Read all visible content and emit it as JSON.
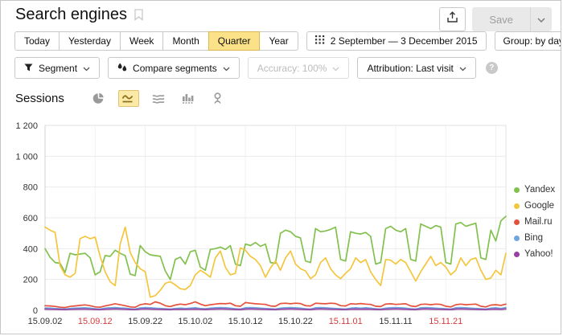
{
  "header": {
    "title": "Search engines",
    "save_label": "Save"
  },
  "toolbar": {
    "tabs": [
      {
        "label": "Today",
        "selected": false
      },
      {
        "label": "Yesterday",
        "selected": false
      },
      {
        "label": "Week",
        "selected": false
      },
      {
        "label": "Month",
        "selected": false
      },
      {
        "label": "Quarter",
        "selected": true
      },
      {
        "label": "Year",
        "selected": false
      }
    ],
    "date_range": "2 September — 3 December 2015",
    "group_label": "Group: by day",
    "segment_label": "Segment",
    "compare_label": "Compare segments",
    "accuracy_label": "Accuracy: 100%",
    "attribution_label": "Attribution: Last visit",
    "help_label": "?"
  },
  "metric": {
    "label": "Sessions"
  },
  "icons": {
    "chart_types": [
      "pie-chart",
      "line-chart",
      "stacked-area",
      "bar-chart",
      "map-pin"
    ],
    "selected_chart_type": "line-chart"
  },
  "colors": {
    "selected_tab_bg": "#fbe188",
    "weekend_tick": "#d43d3d"
  },
  "chart_data": {
    "type": "line",
    "ylabel": "Sessions",
    "ylim": [
      0,
      1200
    ],
    "grid": true,
    "legend_position": "right",
    "y_ticks": [
      {
        "label": "0",
        "value": 0
      },
      {
        "label": "200",
        "value": 200
      },
      {
        "label": "400",
        "value": 400
      },
      {
        "label": "600",
        "value": 600
      },
      {
        "label": "800",
        "value": 800
      },
      {
        "label": "1 000",
        "value": 1000
      },
      {
        "label": "1 200",
        "value": 1200
      }
    ],
    "x_start": "2015-09-02",
    "x_end": "2015-12-03",
    "days": 93,
    "x_ticks": [
      {
        "label": "15.09.02",
        "pos": 0,
        "weekend": false
      },
      {
        "label": "15.09.12",
        "pos": 10,
        "weekend": true
      },
      {
        "label": "15.09.22",
        "pos": 20,
        "weekend": false
      },
      {
        "label": "15.10.02",
        "pos": 30,
        "weekend": false
      },
      {
        "label": "15.10.12",
        "pos": 40,
        "weekend": false
      },
      {
        "label": "15.10.22",
        "pos": 50,
        "weekend": false
      },
      {
        "label": "15.11.01",
        "pos": 60,
        "weekend": true
      },
      {
        "label": "15.11.11",
        "pos": 70,
        "weekend": false
      },
      {
        "label": "15.11.21",
        "pos": 80,
        "weekend": true
      }
    ],
    "series": [
      {
        "name": "Yandex",
        "color": "#82c14e",
        "values": [
          400,
          345,
          310,
          305,
          245,
          370,
          360,
          365,
          370,
          340,
          230,
          250,
          355,
          350,
          390,
          370,
          355,
          235,
          225,
          420,
          380,
          360,
          355,
          350,
          255,
          200,
          330,
          345,
          300,
          380,
          390,
          280,
          260,
          395,
          400,
          410,
          395,
          420,
          300,
          290,
          430,
          420,
          440,
          415,
          430,
          310,
          305,
          500,
          520,
          510,
          480,
          470,
          320,
          310,
          530,
          510,
          515,
          525,
          540,
          330,
          320,
          510,
          500,
          495,
          505,
          480,
          300,
          310,
          530,
          545,
          520,
          510,
          530,
          330,
          320,
          560,
          545,
          530,
          550,
          540,
          310,
          300,
          560,
          570,
          545,
          555,
          565,
          340,
          330,
          520,
          450,
          580,
          610
        ]
      },
      {
        "name": "Google",
        "color": "#f4c63d",
        "values": [
          540,
          520,
          505,
          290,
          230,
          215,
          240,
          465,
          480,
          465,
          475,
          350,
          250,
          185,
          160,
          430,
          540,
          375,
          310,
          270,
          250,
          85,
          95,
          130,
          175,
          185,
          165,
          140,
          135,
          160,
          230,
          260,
          240,
          215,
          340,
          385,
          280,
          230,
          240,
          405,
          390,
          350,
          330,
          290,
          215,
          275,
          320,
          260,
          340,
          385,
          300,
          270,
          255,
          205,
          230,
          310,
          340,
          270,
          230,
          205,
          240,
          270,
          340,
          310,
          330,
          250,
          200,
          160,
          330,
          325,
          300,
          330,
          310,
          250,
          190,
          250,
          300,
          350,
          290,
          310,
          280,
          230,
          260,
          340,
          290,
          330,
          340,
          260,
          200,
          210,
          260,
          230,
          370
        ]
      },
      {
        "name": "Mail.ru",
        "color": "#e4513b",
        "values": [
          30,
          28,
          25,
          20,
          18,
          25,
          28,
          32,
          35,
          30,
          22,
          20,
          28,
          35,
          42,
          36,
          30,
          22,
          20,
          36,
          42,
          38,
          55,
          46,
          30,
          24,
          34,
          40,
          36,
          44,
          55,
          40,
          30,
          36,
          40,
          44,
          42,
          46,
          30,
          26,
          50,
          46,
          42,
          40,
          38,
          28,
          26,
          44,
          46,
          42,
          46,
          44,
          30,
          28,
          46,
          44,
          42,
          46,
          44,
          30,
          28,
          42,
          40,
          44,
          40,
          38,
          26,
          24,
          40,
          42,
          38,
          40,
          42,
          28,
          24,
          38,
          40,
          36,
          40,
          38,
          26,
          22,
          36,
          40,
          36,
          38,
          40,
          26,
          22,
          34,
          36,
          32,
          40
        ]
      },
      {
        "name": "Bing",
        "color": "#6da7de",
        "values": [
          15,
          14,
          12,
          10,
          8,
          12,
          14,
          15,
          16,
          14,
          10,
          8,
          14,
          16,
          18,
          15,
          14,
          10,
          8,
          15,
          18,
          16,
          14,
          12,
          10,
          8,
          12,
          14,
          12,
          14,
          16,
          12,
          10,
          14,
          16,
          18,
          16,
          14,
          10,
          8,
          16,
          18,
          16,
          14,
          12,
          10,
          8,
          14,
          16,
          18,
          16,
          14,
          10,
          8,
          16,
          18,
          16,
          14,
          12,
          10,
          8,
          14,
          16,
          14,
          16,
          14,
          10,
          8,
          14,
          16,
          18,
          16,
          14,
          10,
          8,
          16,
          18,
          16,
          14,
          12,
          10,
          8,
          16,
          18,
          16,
          14,
          12,
          10,
          8,
          14,
          16,
          12,
          18
        ]
      },
      {
        "name": "Yahoo!",
        "color": "#9640a3",
        "values": [
          8,
          7,
          6,
          5,
          4,
          6,
          7,
          8,
          8,
          7,
          5,
          4,
          7,
          8,
          9,
          8,
          7,
          5,
          4,
          8,
          9,
          8,
          7,
          6,
          5,
          4,
          6,
          7,
          6,
          7,
          8,
          6,
          5,
          7,
          8,
          9,
          8,
          7,
          5,
          4,
          8,
          9,
          8,
          7,
          6,
          5,
          4,
          7,
          8,
          9,
          8,
          7,
          5,
          4,
          8,
          9,
          8,
          7,
          6,
          5,
          4,
          7,
          8,
          7,
          8,
          7,
          5,
          4,
          7,
          8,
          9,
          8,
          7,
          5,
          4,
          8,
          9,
          8,
          7,
          6,
          5,
          4,
          8,
          9,
          8,
          7,
          6,
          5,
          4,
          7,
          8,
          6,
          9
        ]
      }
    ]
  }
}
